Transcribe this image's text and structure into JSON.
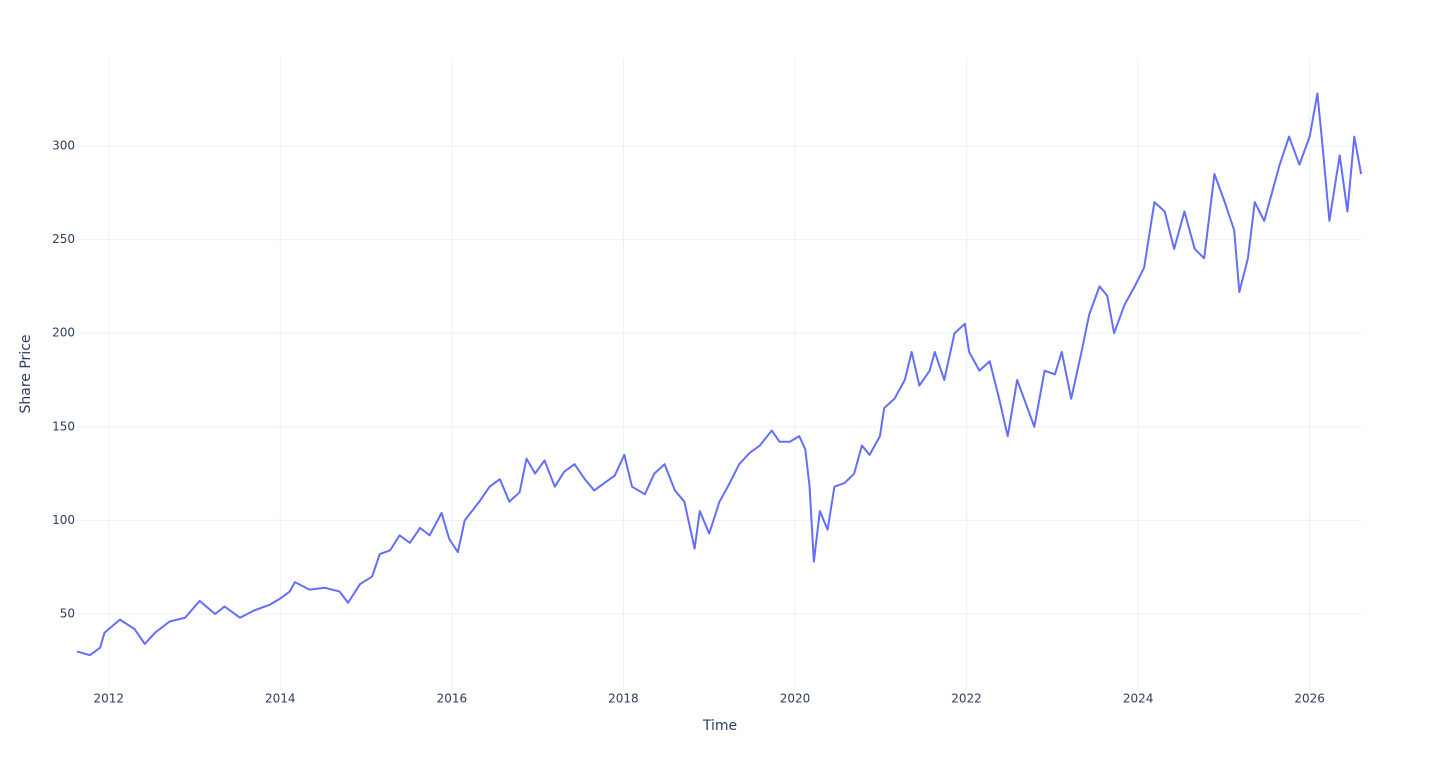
{
  "chart_data": {
    "type": "line",
    "x_label": "Time",
    "y_label": "Share Price",
    "xlim": [
      2011.63,
      2026.61
    ],
    "ylim": [
      9.4,
      347
    ],
    "xticks": [
      2012,
      2014,
      2016,
      2018,
      2020,
      2022,
      2024,
      2026
    ],
    "yticks": [
      50,
      100,
      150,
      200,
      250,
      300
    ],
    "grid": true,
    "series": [
      {
        "color": "#636efa",
        "x": [
          2011.63,
          2011.78,
          2011.9,
          2011.95,
          2012.13,
          2012.3,
          2012.42,
          2012.54,
          2012.71,
          2012.89,
          2013.06,
          2013.24,
          2013.35,
          2013.53,
          2013.7,
          2013.88,
          2013.99,
          2014.11,
          2014.17,
          2014.34,
          2014.52,
          2014.69,
          2014.79,
          2014.93,
          2015.07,
          2015.16,
          2015.28,
          2015.39,
          2015.51,
          2015.63,
          2015.74,
          2015.88,
          2015.97,
          2016.07,
          2016.15,
          2016.32,
          2016.44,
          2016.56,
          2016.67,
          2016.79,
          2016.87,
          2016.97,
          2017.08,
          2017.2,
          2017.31,
          2017.43,
          2017.55,
          2017.66,
          2017.78,
          2017.9,
          2018.01,
          2018.1,
          2018.25,
          2018.36,
          2018.48,
          2018.6,
          2018.71,
          2018.83,
          2018.89,
          2019.0,
          2019.12,
          2019.24,
          2019.35,
          2019.47,
          2019.59,
          2019.73,
          2019.82,
          2019.94,
          2020.05,
          2020.12,
          2020.17,
          2020.22,
          2020.29,
          2020.38,
          2020.46,
          2020.58,
          2020.69,
          2020.78,
          2020.87,
          2020.99,
          2021.04,
          2021.16,
          2021.28,
          2021.36,
          2021.45,
          2021.57,
          2021.63,
          2021.74,
          2021.86,
          2021.98,
          2022.03,
          2022.15,
          2022.27,
          2022.38,
          2022.48,
          2022.59,
          2022.71,
          2022.79,
          2022.91,
          2023.03,
          2023.11,
          2023.22,
          2023.34,
          2023.43,
          2023.55,
          2023.64,
          2023.72,
          2023.84,
          2023.96,
          2024.07,
          2024.19,
          2024.31,
          2024.42,
          2024.54,
          2024.66,
          2024.77,
          2024.89,
          2025.01,
          2025.12,
          2025.18,
          2025.28,
          2025.36,
          2025.47,
          2025.65,
          2025.76,
          2025.88,
          2026.0,
          2026.09,
          2026.15,
          2026.23,
          2026.35,
          2026.44,
          2026.52,
          2026.6
        ],
        "values": [
          30,
          28,
          32,
          40,
          47,
          42,
          34,
          40,
          46,
          48,
          57,
          50,
          54,
          48,
          52,
          55,
          58,
          62,
          67,
          63,
          64,
          62,
          56,
          66,
          70,
          82,
          84,
          92,
          88,
          96,
          92,
          104,
          90,
          83,
          100,
          110,
          118,
          122,
          110,
          115,
          133,
          125,
          132,
          118,
          126,
          130,
          122,
          116,
          120,
          124,
          135,
          118,
          114,
          125,
          130,
          116,
          110,
          85,
          105,
          93,
          110,
          120,
          130,
          136,
          140,
          148,
          142,
          142,
          145,
          138,
          118,
          78,
          105,
          95,
          118,
          120,
          125,
          140,
          135,
          145,
          160,
          165,
          175,
          190,
          172,
          180,
          190,
          175,
          200,
          205,
          190,
          180,
          185,
          165,
          145,
          175,
          160,
          150,
          180,
          178,
          190,
          165,
          190,
          210,
          225,
          220,
          200,
          215,
          225,
          235,
          270,
          265,
          245,
          265,
          245,
          240,
          285,
          270,
          255,
          222,
          240,
          270,
          260,
          290,
          305,
          290,
          305,
          328,
          300,
          260,
          295,
          265,
          305,
          285
        ]
      }
    ]
  }
}
